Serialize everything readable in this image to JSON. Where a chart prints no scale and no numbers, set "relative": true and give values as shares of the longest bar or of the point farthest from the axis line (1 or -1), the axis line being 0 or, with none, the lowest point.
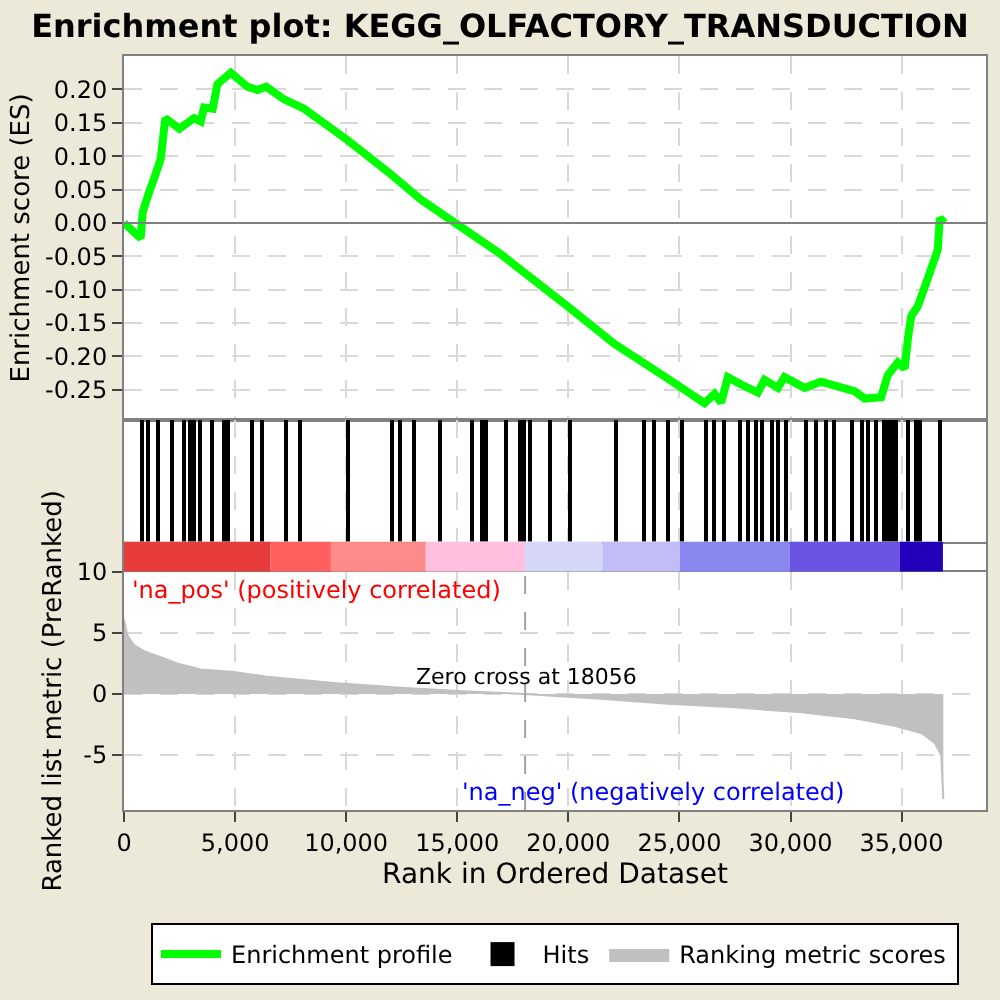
{
  "chart_data": [
    {
      "type": "line",
      "title": "Enrichment plot: KEGG_OLFACTORY_TRANSDUCTION",
      "ylabel": "Enrichment score (ES)",
      "series": [
        {
          "name": "Enrichment profile",
          "color": "#00ff00",
          "x": [
            0,
            751,
            841,
            1111,
            1411,
            1652,
            1862,
            2492,
            3153,
            3453,
            3604,
            3994,
            4204,
            4805,
            5556,
            6006,
            6397,
            7207,
            8108,
            10060,
            11862,
            13364,
            15165,
            16967,
            19970,
            22070,
            24470,
            26128,
            26580,
            26880,
            27180,
            27778,
            28530,
            28830,
            29430,
            29730,
            30630,
            31380,
            32880,
            33340,
            34080,
            34380,
            34830,
            35140,
            35290,
            35440,
            35730,
            36180,
            36630,
            36720,
            36940
          ],
          "values": [
            0,
            -0.023,
            0.016,
            0.044,
            0.072,
            0.096,
            0.157,
            0.141,
            0.157,
            0.152,
            0.173,
            0.171,
            0.208,
            0.225,
            0.204,
            0.199,
            0.204,
            0.185,
            0.171,
            0.124,
            0.077,
            0.035,
            -0.006,
            -0.047,
            -0.125,
            -0.181,
            -0.233,
            -0.27,
            -0.256,
            -0.269,
            -0.231,
            -0.242,
            -0.254,
            -0.235,
            -0.247,
            -0.231,
            -0.247,
            -0.238,
            -0.252,
            -0.263,
            -0.261,
            -0.228,
            -0.209,
            -0.218,
            -0.172,
            -0.139,
            -0.125,
            -0.083,
            -0.04,
            0.007,
            0
          ]
        }
      ],
      "xlim": [
        0,
        38800
      ],
      "xticks": [
        5000,
        10000,
        15000,
        20000,
        25000,
        30000,
        35000
      ],
      "ylim": [
        -0.295,
        0.25
      ],
      "yticks": [
        {
          "value": -0.25,
          "label": "-0.25"
        },
        {
          "value": -0.2,
          "label": "-0.20"
        },
        {
          "value": -0.15,
          "label": "-0.15"
        },
        {
          "value": -0.1,
          "label": "-0.10"
        },
        {
          "value": -0.05,
          "label": "-0.05"
        },
        {
          "value": 0,
          "label": "0.00"
        },
        {
          "value": 0.05,
          "label": "0.05"
        },
        {
          "value": 0.1,
          "label": "0.10"
        },
        {
          "value": 0.15,
          "label": "0.15"
        },
        {
          "value": 0.2,
          "label": "0.20"
        }
      ],
      "ref_lines": [
        {
          "axis": "y",
          "value": 0,
          "color": "#808080"
        }
      ],
      "grid": true,
      "tick_labels": "y",
      "legend": "bottom",
      "marker": "none",
      "line_style": "solid"
    },
    {
      "type": "bar",
      "relative": true,
      "series": [
        {
          "name": "Hits",
          "color": "#000000",
          "x": [
            811,
            1111,
            1562,
            2132,
            2703,
            2943,
            3153,
            3453,
            3994,
            4504,
            4715,
            5766,
            6216,
            7267,
            7928,
            10060,
            12072,
            12402,
            13093,
            14204,
            15646,
            16156,
            16276,
            17177,
            17867,
            18017,
            18317,
            19158,
            20059,
            22161,
            23363,
            23873,
            24474,
            25104,
            26216,
            26576,
            27026,
            27717,
            28077,
            28468,
            28738,
            29129,
            29429,
            29789,
            30720,
            31141,
            31621,
            31981,
            32731,
            33242,
            33482,
            33843,
            34233,
            34383,
            34563,
            34773,
            35284,
            35674,
            35794,
            36694
          ],
          "values": [
            1,
            1,
            1,
            1,
            1,
            1,
            1,
            1,
            1,
            1,
            1,
            1,
            1,
            1,
            1,
            1,
            1,
            1,
            1,
            1,
            1,
            1,
            1,
            1,
            1,
            1,
            1,
            1,
            1,
            1,
            1,
            1,
            1,
            1,
            1,
            1,
            1,
            1,
            1,
            1,
            1,
            1,
            1,
            1,
            1,
            1,
            1,
            1,
            1,
            1,
            1,
            1,
            1,
            1,
            1,
            1,
            1,
            1,
            1,
            1
          ]
        }
      ],
      "xlim": [
        0,
        38800
      ],
      "xticks": [
        5000,
        10000,
        15000,
        20000,
        25000,
        30000,
        35000
      ],
      "grid": "x",
      "tick_labels": false
    },
    {
      "type": "area",
      "xlabel": "Rank in Ordered Dataset",
      "ylabel": "Ranked list metric (PreRanked)",
      "series": [
        {
          "name": "Ranking metric scores",
          "color": "#c0c0c0",
          "x": [
            0,
            150,
            450,
            901,
            1652,
            2402,
            3453,
            4955,
            6456,
            9459,
            12462,
            15465,
            18017,
            21470,
            24474,
            27477,
            30480,
            32882,
            34683,
            35884,
            36485,
            36785,
            36880
          ],
          "values": [
            6.1,
            4.8,
            4.0,
            3.5,
            3.0,
            2.5,
            2.0,
            1.8,
            1.4,
            0.9,
            0.5,
            0.2,
            0,
            -0.4,
            -0.8,
            -1.1,
            -1.5,
            -2.0,
            -2.6,
            -3.2,
            -4.0,
            -5.0,
            -8.6
          ]
        }
      ],
      "xlim": [
        0,
        38800
      ],
      "xticks": [
        0,
        {
          "value": 5000,
          "label": "5,000"
        },
        {
          "value": 10000,
          "label": "10,000"
        },
        {
          "value": 15000,
          "label": "15,000"
        },
        {
          "value": 20000,
          "label": "20,000"
        },
        {
          "value": 25000,
          "label": "25,000"
        },
        {
          "value": 30000,
          "label": "30,000"
        },
        {
          "value": 35000,
          "label": "35,000"
        }
      ],
      "ylim": [
        -9.5,
        10
      ],
      "yticks": [
        -5,
        0,
        5,
        10
      ],
      "ref_lines": [
        {
          "axis": "x",
          "value": 18056,
          "label": "Zero cross at 18056",
          "color": "#a0a0a0",
          "line_style": "dashed"
        }
      ],
      "annotations": [
        "'na_pos' (positively correlated)",
        "'na_neg' (negatively correlated)"
      ],
      "grid": true
    }
  ]
}
